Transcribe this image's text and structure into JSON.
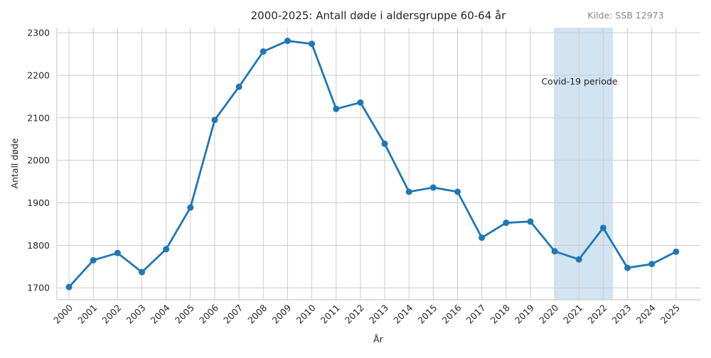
{
  "chart_data": {
    "type": "line",
    "title": "2000-2025: Antall døde i aldersgruppe 60-64 år",
    "source": "Kilde: SSB 12973",
    "xlabel": "År",
    "ylabel": "Antall døde",
    "annotation": "Covid-19 periode",
    "span": [
      2020,
      2022.4
    ],
    "span_color": "#a6c8e4",
    "x": [
      2000,
      2001,
      2002,
      2003,
      2004,
      2005,
      2006,
      2007,
      2008,
      2009,
      2010,
      2011,
      2012,
      2013,
      2014,
      2015,
      2016,
      2017,
      2018,
      2019,
      2020,
      2021,
      2022,
      2023,
      2024,
      2025
    ],
    "series": [
      {
        "name": "Antall døde",
        "color": "#1f77b4",
        "values": [
          1702,
          1765,
          1782,
          1737,
          1791,
          1889,
          2095,
          2173,
          2256,
          2281,
          2274,
          2121,
          2136,
          2039,
          1926,
          1936,
          1926,
          1818,
          1853,
          1856,
          1786,
          1767,
          1841,
          1747,
          1756,
          1785
        ]
      }
    ],
    "xlim": [
      1999.5,
      2026
    ],
    "ylim": [
      1672,
      2312
    ],
    "xticks": [
      2000,
      2001,
      2002,
      2003,
      2004,
      2005,
      2006,
      2007,
      2008,
      2009,
      2010,
      2011,
      2012,
      2013,
      2014,
      2015,
      2016,
      2017,
      2018,
      2019,
      2020,
      2021,
      2022,
      2023,
      2024,
      2025
    ],
    "yticks": [
      1700,
      1800,
      1900,
      2000,
      2100,
      2200,
      2300
    ],
    "grid": true
  }
}
